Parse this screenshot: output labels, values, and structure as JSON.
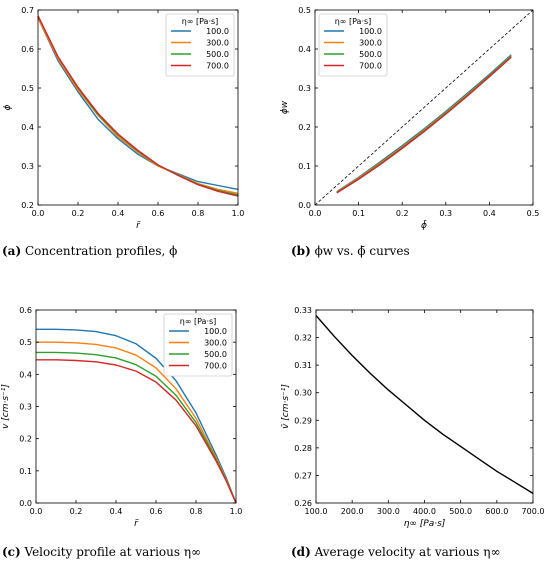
{
  "captions": {
    "a": {
      "tag": "(a)",
      "text": "Concentration profiles, ϕ"
    },
    "b": {
      "tag": "(b)",
      "text": "ϕw vs. ϕ̄ curves"
    },
    "c": {
      "tag": "(c)",
      "text": "Velocity profile at various η∞"
    },
    "d": {
      "tag": "(d)",
      "text": "Average velocity at various η∞"
    }
  },
  "colors": {
    "blue": "#1f77b4",
    "orange": "#ff7f0e",
    "green": "#2ca02c",
    "red": "#d62728"
  },
  "chart_data": [
    {
      "id": "a",
      "type": "line",
      "xlabel": "r̃",
      "ylabel": "ϕ",
      "xlim": [
        0,
        1
      ],
      "ylim": [
        0.2,
        0.7
      ],
      "xticks": [
        "0.0",
        "0.2",
        "0.4",
        "0.6",
        "0.8",
        "1.0"
      ],
      "yticks": [
        "0.2",
        "0.3",
        "0.4",
        "0.5",
        "0.6",
        "0.7"
      ],
      "legend": {
        "title": "η∞ [Pa·s]",
        "placement": "top-right"
      },
      "x": [
        0,
        0.1,
        0.2,
        0.3,
        0.4,
        0.5,
        0.6,
        0.7,
        0.8,
        0.9,
        1.0
      ],
      "series": [
        {
          "name": "100.0",
          "color": "#1f77b4",
          "values": [
            0.68,
            0.57,
            0.49,
            0.42,
            0.37,
            0.33,
            0.3,
            0.28,
            0.26,
            0.25,
            0.24
          ]
        },
        {
          "name": "300.0",
          "color": "#ff7f0e",
          "values": [
            0.68,
            0.575,
            0.495,
            0.43,
            0.375,
            0.335,
            0.3,
            0.278,
            0.255,
            0.24,
            0.23
          ]
        },
        {
          "name": "500.0",
          "color": "#2ca02c",
          "values": [
            0.685,
            0.58,
            0.5,
            0.432,
            0.38,
            0.338,
            0.302,
            0.277,
            0.253,
            0.237,
            0.226
          ]
        },
        {
          "name": "700.0",
          "color": "#d62728",
          "values": [
            0.685,
            0.58,
            0.502,
            0.435,
            0.382,
            0.34,
            0.303,
            0.276,
            0.252,
            0.235,
            0.223
          ]
        }
      ]
    },
    {
      "id": "b",
      "type": "line",
      "xlabel": "ϕ̄",
      "ylabel": "ϕw",
      "xlim": [
        0,
        0.5
      ],
      "ylim": [
        0,
        0.5
      ],
      "xticks": [
        "0.0",
        "0.1",
        "0.2",
        "0.3",
        "0.4",
        "0.5"
      ],
      "yticks": [
        "0.0",
        "0.1",
        "0.2",
        "0.3",
        "0.4",
        "0.5"
      ],
      "legend": {
        "title": "η∞ [Pa·s]",
        "placement": "top-left"
      },
      "reference_line": {
        "style": "dashed",
        "x": [
          0,
          0.5
        ],
        "y": [
          0,
          0.5
        ]
      },
      "x": [
        0.05,
        0.1,
        0.15,
        0.2,
        0.25,
        0.3,
        0.35,
        0.4,
        0.45
      ],
      "series": [
        {
          "name": "100.0",
          "color": "#1f77b4",
          "values": [
            0.034,
            0.071,
            0.111,
            0.152,
            0.195,
            0.24,
            0.287,
            0.335,
            0.385
          ]
        },
        {
          "name": "300.0",
          "color": "#ff7f0e",
          "values": [
            0.033,
            0.069,
            0.108,
            0.149,
            0.192,
            0.237,
            0.284,
            0.332,
            0.382
          ]
        },
        {
          "name": "500.0",
          "color": "#2ca02c",
          "values": [
            0.032,
            0.067,
            0.106,
            0.147,
            0.19,
            0.235,
            0.282,
            0.331,
            0.381
          ]
        },
        {
          "name": "700.0",
          "color": "#d62728",
          "values": [
            0.031,
            0.066,
            0.104,
            0.145,
            0.188,
            0.233,
            0.28,
            0.329,
            0.379
          ]
        }
      ]
    },
    {
      "id": "c",
      "type": "line",
      "xlabel": "r̃",
      "ylabel": "v [cm·s⁻¹]",
      "xlim": [
        0,
        1
      ],
      "ylim": [
        0,
        0.6
      ],
      "xticks": [
        "0.0",
        "0.2",
        "0.4",
        "0.6",
        "0.8",
        "1.0"
      ],
      "yticks": [
        "0.0",
        "0.1",
        "0.2",
        "0.3",
        "0.4",
        "0.5",
        "0.6"
      ],
      "legend": {
        "title": "η∞ [Pa·s]",
        "placement": "top-right"
      },
      "x": [
        0,
        0.1,
        0.2,
        0.3,
        0.4,
        0.5,
        0.6,
        0.7,
        0.8,
        0.9,
        0.95,
        1.0
      ],
      "series": [
        {
          "name": "100.0",
          "color": "#1f77b4",
          "values": [
            0.54,
            0.54,
            0.538,
            0.533,
            0.52,
            0.495,
            0.45,
            0.38,
            0.28,
            0.15,
            0.08,
            0.0
          ]
        },
        {
          "name": "300.0",
          "color": "#ff7f0e",
          "values": [
            0.5,
            0.5,
            0.498,
            0.493,
            0.482,
            0.46,
            0.42,
            0.355,
            0.263,
            0.142,
            0.075,
            0.0
          ]
        },
        {
          "name": "500.0",
          "color": "#2ca02c",
          "values": [
            0.468,
            0.468,
            0.466,
            0.461,
            0.451,
            0.43,
            0.394,
            0.335,
            0.25,
            0.136,
            0.072,
            0.0
          ]
        },
        {
          "name": "700.0",
          "color": "#d62728",
          "values": [
            0.445,
            0.445,
            0.443,
            0.439,
            0.429,
            0.41,
            0.376,
            0.32,
            0.24,
            0.131,
            0.07,
            0.0
          ]
        }
      ]
    },
    {
      "id": "d",
      "type": "line",
      "xlabel": "η∞ [Pa·s]",
      "ylabel": "v̄ [cm·s⁻¹]",
      "xlim": [
        100,
        700
      ],
      "ylim": [
        0.26,
        0.33
      ],
      "xticks": [
        "100.0",
        "200.0",
        "300.0",
        "400.0",
        "500.0",
        "600.0",
        "700.0"
      ],
      "yticks": [
        "0.26",
        "0.27",
        "0.28",
        "0.29",
        "0.30",
        "0.31",
        "0.32",
        "0.33"
      ],
      "x": [
        100,
        150,
        200,
        250,
        300,
        350,
        400,
        450,
        500,
        550,
        600,
        650,
        700
      ],
      "series": [
        {
          "color": "#000000",
          "values": [
            0.328,
            0.3205,
            0.3135,
            0.307,
            0.301,
            0.2955,
            0.29,
            0.285,
            0.2805,
            0.276,
            0.2715,
            0.2675,
            0.2635
          ]
        }
      ]
    }
  ]
}
